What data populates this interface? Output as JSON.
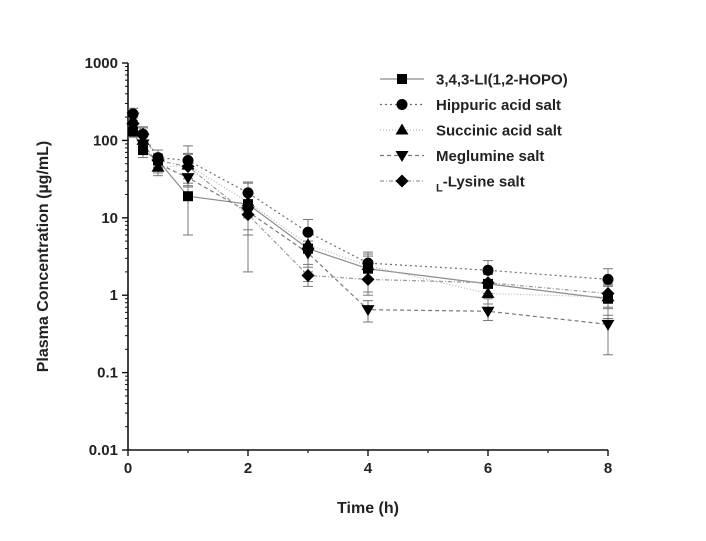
{
  "chart_data": {
    "type": "line",
    "xlabel": "Time (h)",
    "ylabel": "Plasma Concentration (µg/mL)",
    "xlim": [
      0,
      8
    ],
    "ylim": [
      0.01,
      1000
    ],
    "yscale": "log",
    "x_ticks": [
      "0",
      "2",
      "4",
      "6",
      "8"
    ],
    "y_ticks": [
      "0.01",
      "0.1",
      "1",
      "10",
      "100",
      "1000"
    ],
    "legend_position": "top-right",
    "series": [
      {
        "name": "3,4,3-LI(1,2-HOPO)",
        "marker": "square",
        "line_color": "#8c8c8c",
        "dash": "solid",
        "x": [
          0.083,
          0.25,
          0.5,
          1,
          2,
          3,
          4,
          6,
          8
        ],
        "y": [
          130,
          75,
          55,
          19,
          15,
          4,
          2.2,
          1.4,
          0.9
        ],
        "err": [
          20,
          15,
          10,
          13,
          13,
          2.5,
          1.2,
          0.5,
          0.4
        ]
      },
      {
        "name": "Hippuric acid salt",
        "marker": "circle",
        "line_color": "#6e6e6e",
        "dash": "2,3",
        "x": [
          0.083,
          0.25,
          0.5,
          1,
          2,
          3,
          4,
          6,
          8
        ],
        "y": [
          220,
          120,
          60,
          55,
          21,
          6.5,
          2.6,
          2.1,
          1.6
        ],
        "err": [
          40,
          30,
          15,
          30,
          8,
          3,
          1,
          0.7,
          0.6
        ]
      },
      {
        "name": "Succinic acid salt",
        "marker": "triangle-up",
        "line_color": "#b4b4b4",
        "dash": "1,2",
        "x": [
          0.083,
          0.25,
          0.5,
          1,
          2,
          3,
          4,
          6,
          8
        ],
        "y": [
          185,
          100,
          45,
          48,
          16,
          4.5,
          2.4,
          1.05,
          0.95
        ],
        "err": [
          30,
          20,
          10,
          20,
          6,
          2,
          0.8,
          0.4,
          0.4
        ]
      },
      {
        "name": "Meglumine salt",
        "marker": "triangle-down",
        "line_color": "#787878",
        "dash": "4,3",
        "x": [
          0.083,
          0.25,
          0.5,
          1,
          2,
          3,
          4,
          6,
          8
        ],
        "y": [
          200,
          90,
          50,
          33,
          12,
          3.5,
          0.65,
          0.62,
          0.42
        ],
        "err": [
          30,
          20,
          12,
          15,
          5,
          1.5,
          0.2,
          0.15,
          0.25
        ]
      },
      {
        "name": "Lysine salt",
        "name_prefix": "L",
        "marker": "diamond",
        "line_color": "#9a9a9a",
        "dash": "4,2,1,2",
        "x": [
          0.083,
          0.25,
          0.5,
          1,
          2,
          3,
          4,
          6,
          8
        ],
        "y": [
          165,
          120,
          55,
          46,
          11,
          1.8,
          1.6,
          1.45,
          1.05
        ],
        "err": [
          30,
          25,
          12,
          20,
          5,
          0.5,
          0.5,
          0.4,
          0.35
        ]
      }
    ]
  }
}
